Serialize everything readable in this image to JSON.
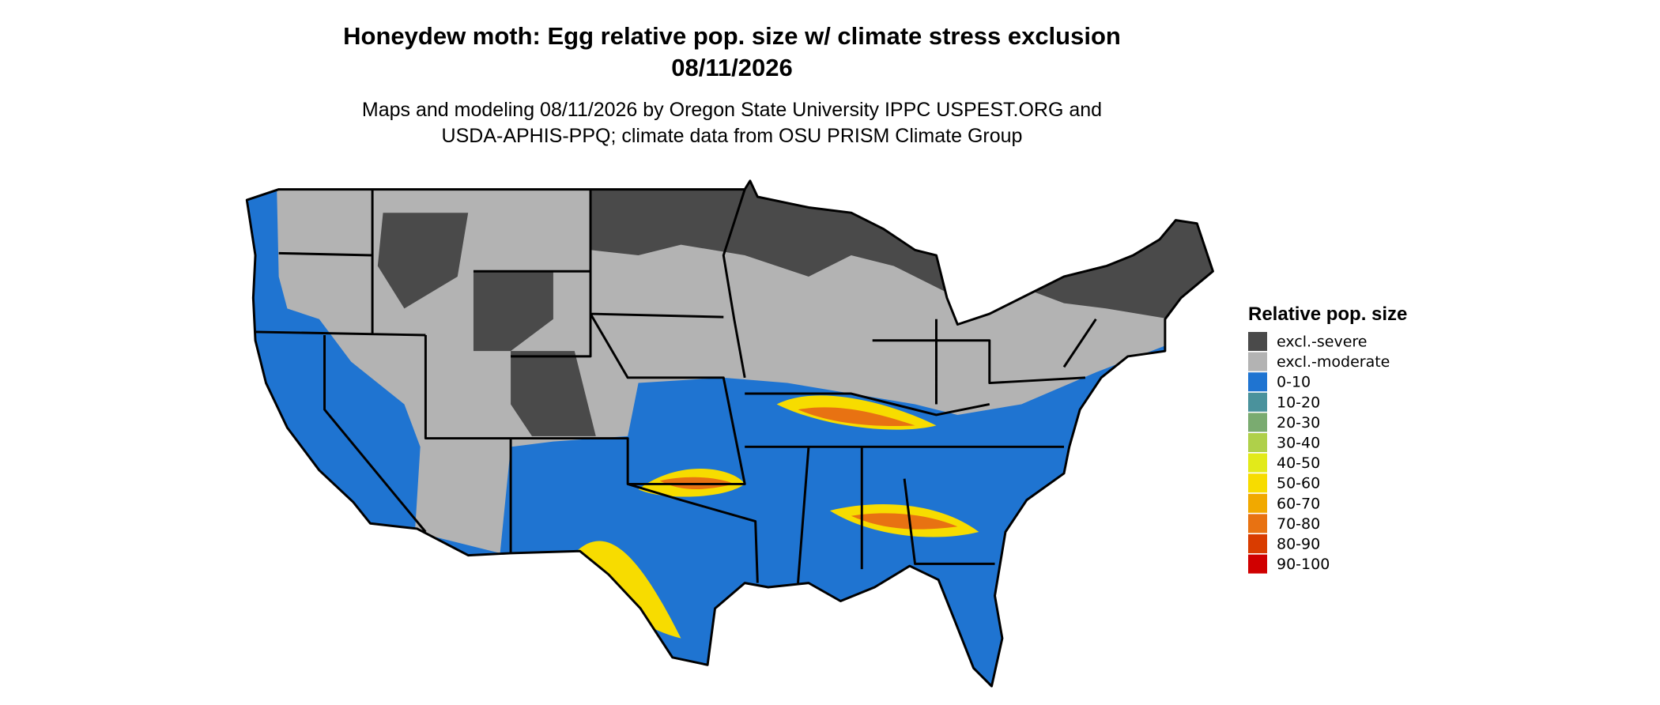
{
  "title": "Honeydew moth: Egg relative pop. size w/ climate stress exclusion",
  "date": "08/11/2026",
  "subtitle": [
    "Maps and modeling 08/11/2026 by Oregon State University IPPC USPEST.ORG and",
    "USDA-APHIS-PPQ; climate data from OSU PRISM Climate Group"
  ],
  "legend": {
    "title": "Relative pop. size",
    "items": [
      {
        "label": "excl.-severe",
        "color": "#4a4a4a"
      },
      {
        "label": "excl.-moderate",
        "color": "#b3b3b3"
      },
      {
        "label": "0-10",
        "color": "#1f74d1"
      },
      {
        "label": "10-20",
        "color": "#4a929c"
      },
      {
        "label": "20-30",
        "color": "#7aab70"
      },
      {
        "label": "30-40",
        "color": "#afd04a"
      },
      {
        "label": "40-50",
        "color": "#e2ea1a"
      },
      {
        "label": "50-60",
        "color": "#f7dc00"
      },
      {
        "label": "60-70",
        "color": "#f1a900"
      },
      {
        "label": "70-80",
        "color": "#e87212"
      },
      {
        "label": "80-90",
        "color": "#d93c00"
      },
      {
        "label": "90-100",
        "color": "#d00000"
      }
    ]
  }
}
